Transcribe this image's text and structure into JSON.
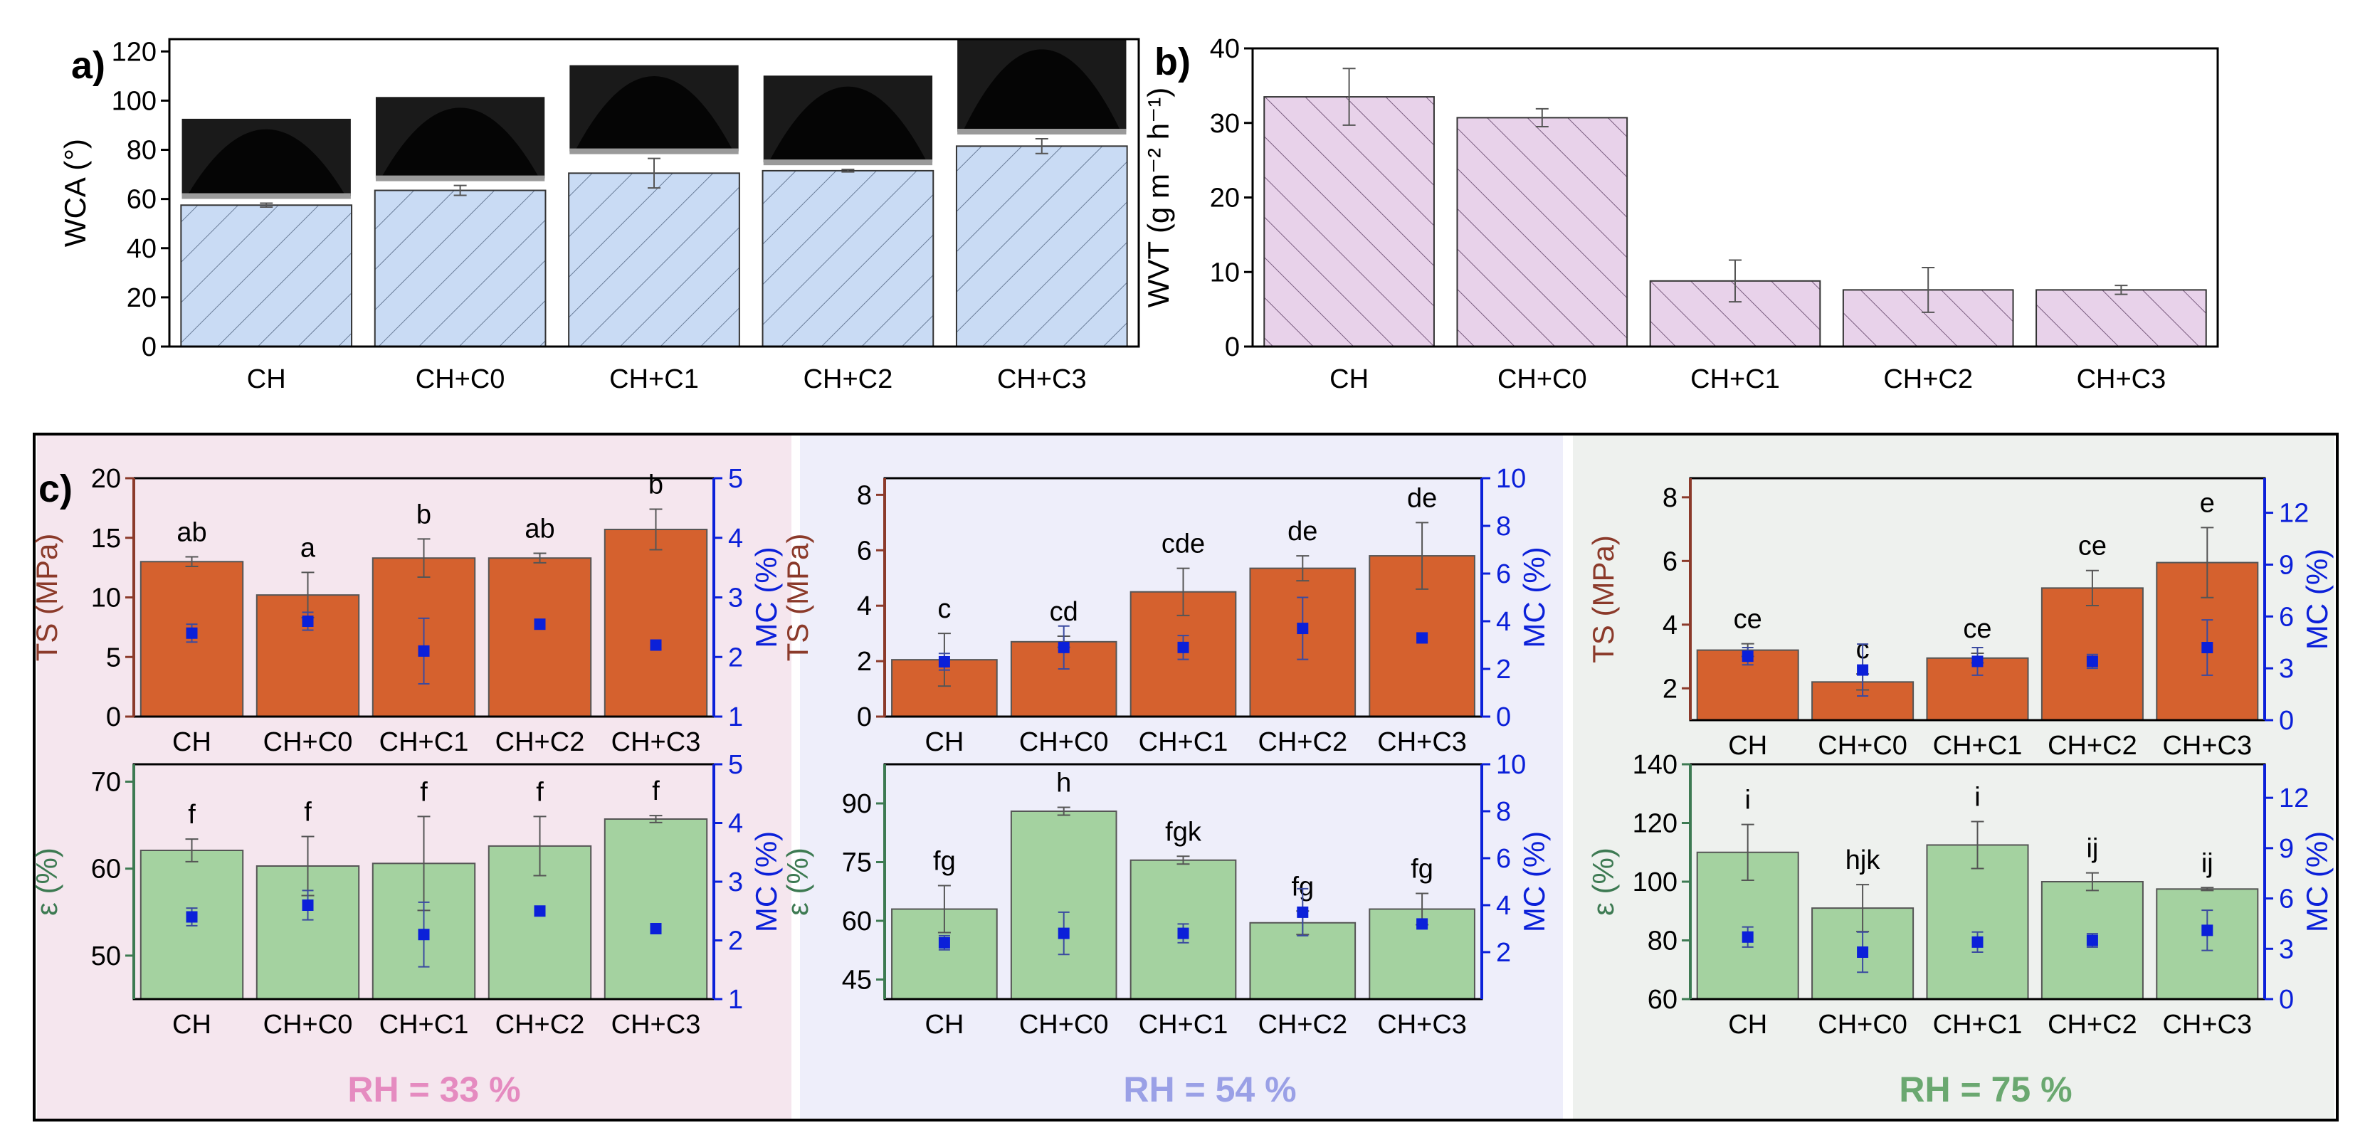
{
  "panel_labels": {
    "a": "a)",
    "b": "b)",
    "c": "c)"
  },
  "colors": {
    "wca_fill": "#c9dbf4",
    "wvt_fill": "#e8d2ea",
    "ts_fill": "#d5612e",
    "eps_fill": "#a4d2a0",
    "mc_marker": "#0b20d9",
    "ts_axis": "#8b3a2a",
    "eps_axis": "#3d7a52",
    "mc_axis": "#0b20d9",
    "rh33_bg": "#f5e6ee",
    "rh54_bg": "#eeeefa",
    "rh75_bg": "#eef1ee",
    "rh33_text": "#e58bc0",
    "rh54_text": "#9aa0e6",
    "rh75_text": "#6aa870"
  },
  "chart_data": [
    {
      "id": "a",
      "type": "bar",
      "title": "",
      "categories": [
        "CH",
        "CH+C0",
        "CH+C1",
        "CH+C2",
        "CH+C3"
      ],
      "values": [
        57.5,
        63.5,
        70.5,
        71.5,
        81.5
      ],
      "errors": [
        0.8,
        2.0,
        6.0,
        0.5,
        3.0
      ],
      "ylabel": "WCA (°)",
      "ylim": [
        0,
        125
      ],
      "yticks": [
        "0",
        "20",
        "40",
        "60",
        "80",
        "100",
        "120"
      ],
      "annotation": "droplet contact-angle photographs above each bar"
    },
    {
      "id": "b",
      "type": "bar",
      "categories": [
        "CH",
        "CH+C0",
        "CH+C1",
        "CH+C2",
        "CH+C3"
      ],
      "values": [
        33.5,
        30.7,
        8.8,
        7.6,
        7.6
      ],
      "errors": [
        3.8,
        1.2,
        2.8,
        3.0,
        0.6
      ],
      "ylabel": "WVT (g m⁻² h⁻¹)",
      "ylim": [
        0,
        40
      ],
      "yticks": [
        "0",
        "10",
        "20",
        "30",
        "40"
      ]
    },
    {
      "id": "c_ts_33",
      "type": "bar",
      "categories": [
        "CH",
        "CH+C0",
        "CH+C1",
        "CH+C2",
        "CH+C3"
      ],
      "values": [
        13.0,
        10.2,
        13.3,
        13.3,
        15.7
      ],
      "errors": [
        0.4,
        1.9,
        1.6,
        0.4,
        1.7
      ],
      "letters": [
        "ab",
        "a",
        "b",
        "ab",
        "b"
      ],
      "ylabel": "TS (MPa)",
      "ylim": [
        0,
        20
      ],
      "yticks": [
        "0",
        "5",
        "10",
        "15",
        "20"
      ],
      "y2label": "MC (%)",
      "y2lim": [
        1,
        5
      ],
      "y2ticks": [
        "1",
        "2",
        "3",
        "4",
        "5"
      ],
      "mc": [
        2.4,
        2.6,
        2.1,
        2.55,
        2.2
      ],
      "mc_err": [
        0.15,
        0.15,
        0.55,
        0.0,
        0.0
      ]
    },
    {
      "id": "c_eps_33",
      "type": "bar",
      "categories": [
        "CH",
        "CH+C0",
        "CH+C1",
        "CH+C2",
        "CH+C3"
      ],
      "values": [
        62.1,
        60.3,
        60.6,
        62.6,
        65.7
      ],
      "errors": [
        1.3,
        3.4,
        5.4,
        3.4,
        0.4
      ],
      "letters": [
        "f",
        "f",
        "f",
        "f",
        "f"
      ],
      "ylabel": "ε (%)",
      "ylim": [
        45,
        72
      ],
      "yticks": [
        "50",
        "60",
        "70"
      ],
      "y2label": "MC (%)",
      "y2lim": [
        1,
        5
      ],
      "y2ticks": [
        "1",
        "2",
        "3",
        "4",
        "5"
      ],
      "mc": [
        2.4,
        2.6,
        2.1,
        2.5,
        2.2
      ],
      "mc_err": [
        0.15,
        0.25,
        0.55,
        0.0,
        0.0
      ]
    },
    {
      "id": "c_ts_54",
      "type": "bar",
      "categories": [
        "CH",
        "CH+C0",
        "CH+C1",
        "CH+C2",
        "CH+C3"
      ],
      "values": [
        2.05,
        2.7,
        4.5,
        5.35,
        5.8
      ],
      "errors": [
        0.95,
        0.2,
        0.85,
        0.45,
        1.2
      ],
      "letters": [
        "c",
        "cd",
        "cde",
        "de",
        "de"
      ],
      "ylabel": "TS (MPa)",
      "ylim": [
        0,
        8.6
      ],
      "yticks": [
        "0",
        "2",
        "4",
        "6",
        "8"
      ],
      "y2label": "MC (%)",
      "y2lim": [
        0,
        10
      ],
      "y2ticks": [
        "0",
        "2",
        "4",
        "6",
        "8",
        "10"
      ],
      "mc": [
        2.3,
        2.9,
        2.9,
        3.7,
        3.3
      ],
      "mc_err": [
        0.35,
        0.9,
        0.5,
        1.3,
        0.0
      ]
    },
    {
      "id": "c_eps_54",
      "type": "bar",
      "categories": [
        "CH",
        "CH+C0",
        "CH+C1",
        "CH+C2",
        "CH+C3"
      ],
      "values": [
        63.0,
        88.0,
        75.5,
        59.5,
        63.0
      ],
      "errors": [
        6.0,
        1.0,
        1.0,
        3.0,
        4.0
      ],
      "letters": [
        "fg",
        "h",
        "fgk",
        "fg",
        "fg"
      ],
      "ylabel": "ε (%)",
      "ylim": [
        40,
        100
      ],
      "yticks": [
        "45",
        "60",
        "75",
        "90"
      ],
      "y2label": "MC (%)",
      "y2lim": [
        0,
        10
      ],
      "y2ticks": [
        "2",
        "4",
        "6",
        "8",
        "10"
      ],
      "mc": [
        2.4,
        2.8,
        2.8,
        3.7,
        3.2
      ],
      "mc_err": [
        0.3,
        0.9,
        0.4,
        1.0,
        0.0
      ]
    },
    {
      "id": "c_ts_75",
      "type": "bar",
      "categories": [
        "CH",
        "CH+C0",
        "CH+C1",
        "CH+C2",
        "CH+C3"
      ],
      "values": [
        3.2,
        2.2,
        2.95,
        5.15,
        5.95
      ],
      "errors": [
        0.2,
        0.25,
        0.15,
        0.55,
        1.1
      ],
      "letters": [
        "ce",
        "c",
        "ce",
        "ce",
        "e"
      ],
      "ylabel": "TS (MPa)",
      "ylim": [
        1,
        8.6
      ],
      "yticks": [
        "2",
        "4",
        "6",
        "8"
      ],
      "y2label": "MC (%)",
      "y2lim": [
        0,
        14
      ],
      "y2ticks": [
        "0",
        "3",
        "6",
        "9",
        "12"
      ],
      "mc": [
        3.7,
        2.9,
        3.4,
        3.4,
        4.2
      ],
      "mc_err": [
        0.5,
        1.5,
        0.8,
        0.4,
        1.6
      ]
    },
    {
      "id": "c_eps_75",
      "type": "bar",
      "categories": [
        "CH",
        "CH+C0",
        "CH+C1",
        "CH+C2",
        "CH+C3"
      ],
      "values": [
        110.0,
        91.0,
        112.5,
        100.0,
        97.5
      ],
      "errors": [
        9.5,
        8.0,
        8.0,
        3.0,
        0.5
      ],
      "letters": [
        "i",
        "hjk",
        "i",
        "ij",
        "ij"
      ],
      "ylabel": "ε (%)",
      "ylim": [
        60,
        140
      ],
      "yticks": [
        "60",
        "80",
        "100",
        "120",
        "140"
      ],
      "y2label": "MC (%)",
      "y2lim": [
        0,
        14
      ],
      "y2ticks": [
        "0",
        "3",
        "6",
        "9",
        "12"
      ],
      "mc": [
        3.7,
        2.8,
        3.4,
        3.5,
        4.1
      ],
      "mc_err": [
        0.6,
        1.2,
        0.6,
        0.4,
        1.2
      ]
    }
  ],
  "rh_labels": [
    "RH = 33 %",
    "RH = 54 %",
    "RH = 75 %"
  ]
}
